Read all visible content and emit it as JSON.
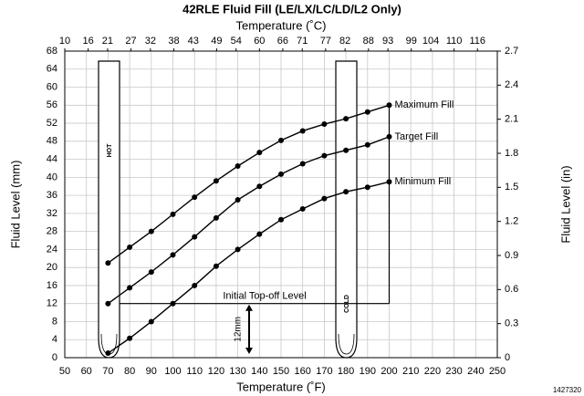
{
  "chart_data": {
    "type": "line",
    "title": "42RLE Fluid Fill (LE/LX/LC/LD/L2 Only)",
    "x_label": "Temperature (˚F)",
    "x2_label": "Temperature (˚C)",
    "y_label": "Fluid Level (mm)",
    "y2_label": "Fluid Level (in)",
    "x": [
      70,
      80,
      90,
      100,
      110,
      120,
      130,
      140,
      150,
      160,
      170,
      180,
      190,
      200
    ],
    "series": [
      {
        "name": "Maximum Fill",
        "color": "#000000",
        "values": [
          21,
          24.5,
          28,
          31.8,
          35.6,
          39.2,
          42.5,
          45.5,
          48.2,
          50.3,
          51.8,
          53,
          54.5,
          56
        ]
      },
      {
        "name": "Target Fill",
        "color": "#000000",
        "values": [
          12,
          15.5,
          19,
          22.8,
          26.8,
          31,
          35,
          38,
          40.7,
          43,
          44.8,
          46,
          47.2,
          49
        ]
      },
      {
        "name": "Minimum Fill",
        "color": "#000000",
        "values": [
          1,
          4.3,
          8,
          12,
          16,
          20.3,
          24,
          27.4,
          30.6,
          33,
          35.3,
          36.8,
          37.8,
          39
        ]
      }
    ],
    "xlim": [
      50,
      250
    ],
    "xticks": [
      50,
      60,
      70,
      80,
      90,
      100,
      110,
      120,
      130,
      140,
      150,
      160,
      170,
      180,
      190,
      200,
      210,
      220,
      230,
      240,
      250
    ],
    "x2lim": [
      10,
      121.1
    ],
    "x2ticks": [
      10,
      16,
      21,
      27,
      32,
      38,
      43,
      49,
      54,
      60,
      66,
      71,
      77,
      82,
      88,
      93,
      99,
      104,
      110,
      116
    ],
    "ylim": [
      0,
      68
    ],
    "yticks": [
      0,
      4,
      8,
      12,
      16,
      20,
      24,
      28,
      32,
      36,
      40,
      44,
      48,
      52,
      56,
      60,
      64,
      68
    ],
    "y2lim": [
      0,
      2.7
    ],
    "y2ticks": [
      0,
      0.3,
      0.6,
      0.9,
      1.2,
      1.5,
      1.8,
      2.1,
      2.4,
      2.7
    ],
    "grid": true,
    "annotations": [
      {
        "text": "Initial Top-off Level",
        "value": 12
      },
      {
        "text": "12mm",
        "value": 12
      },
      {
        "text": "HOT"
      },
      {
        "text": "COLD"
      },
      {
        "text": "1427320"
      }
    ]
  }
}
